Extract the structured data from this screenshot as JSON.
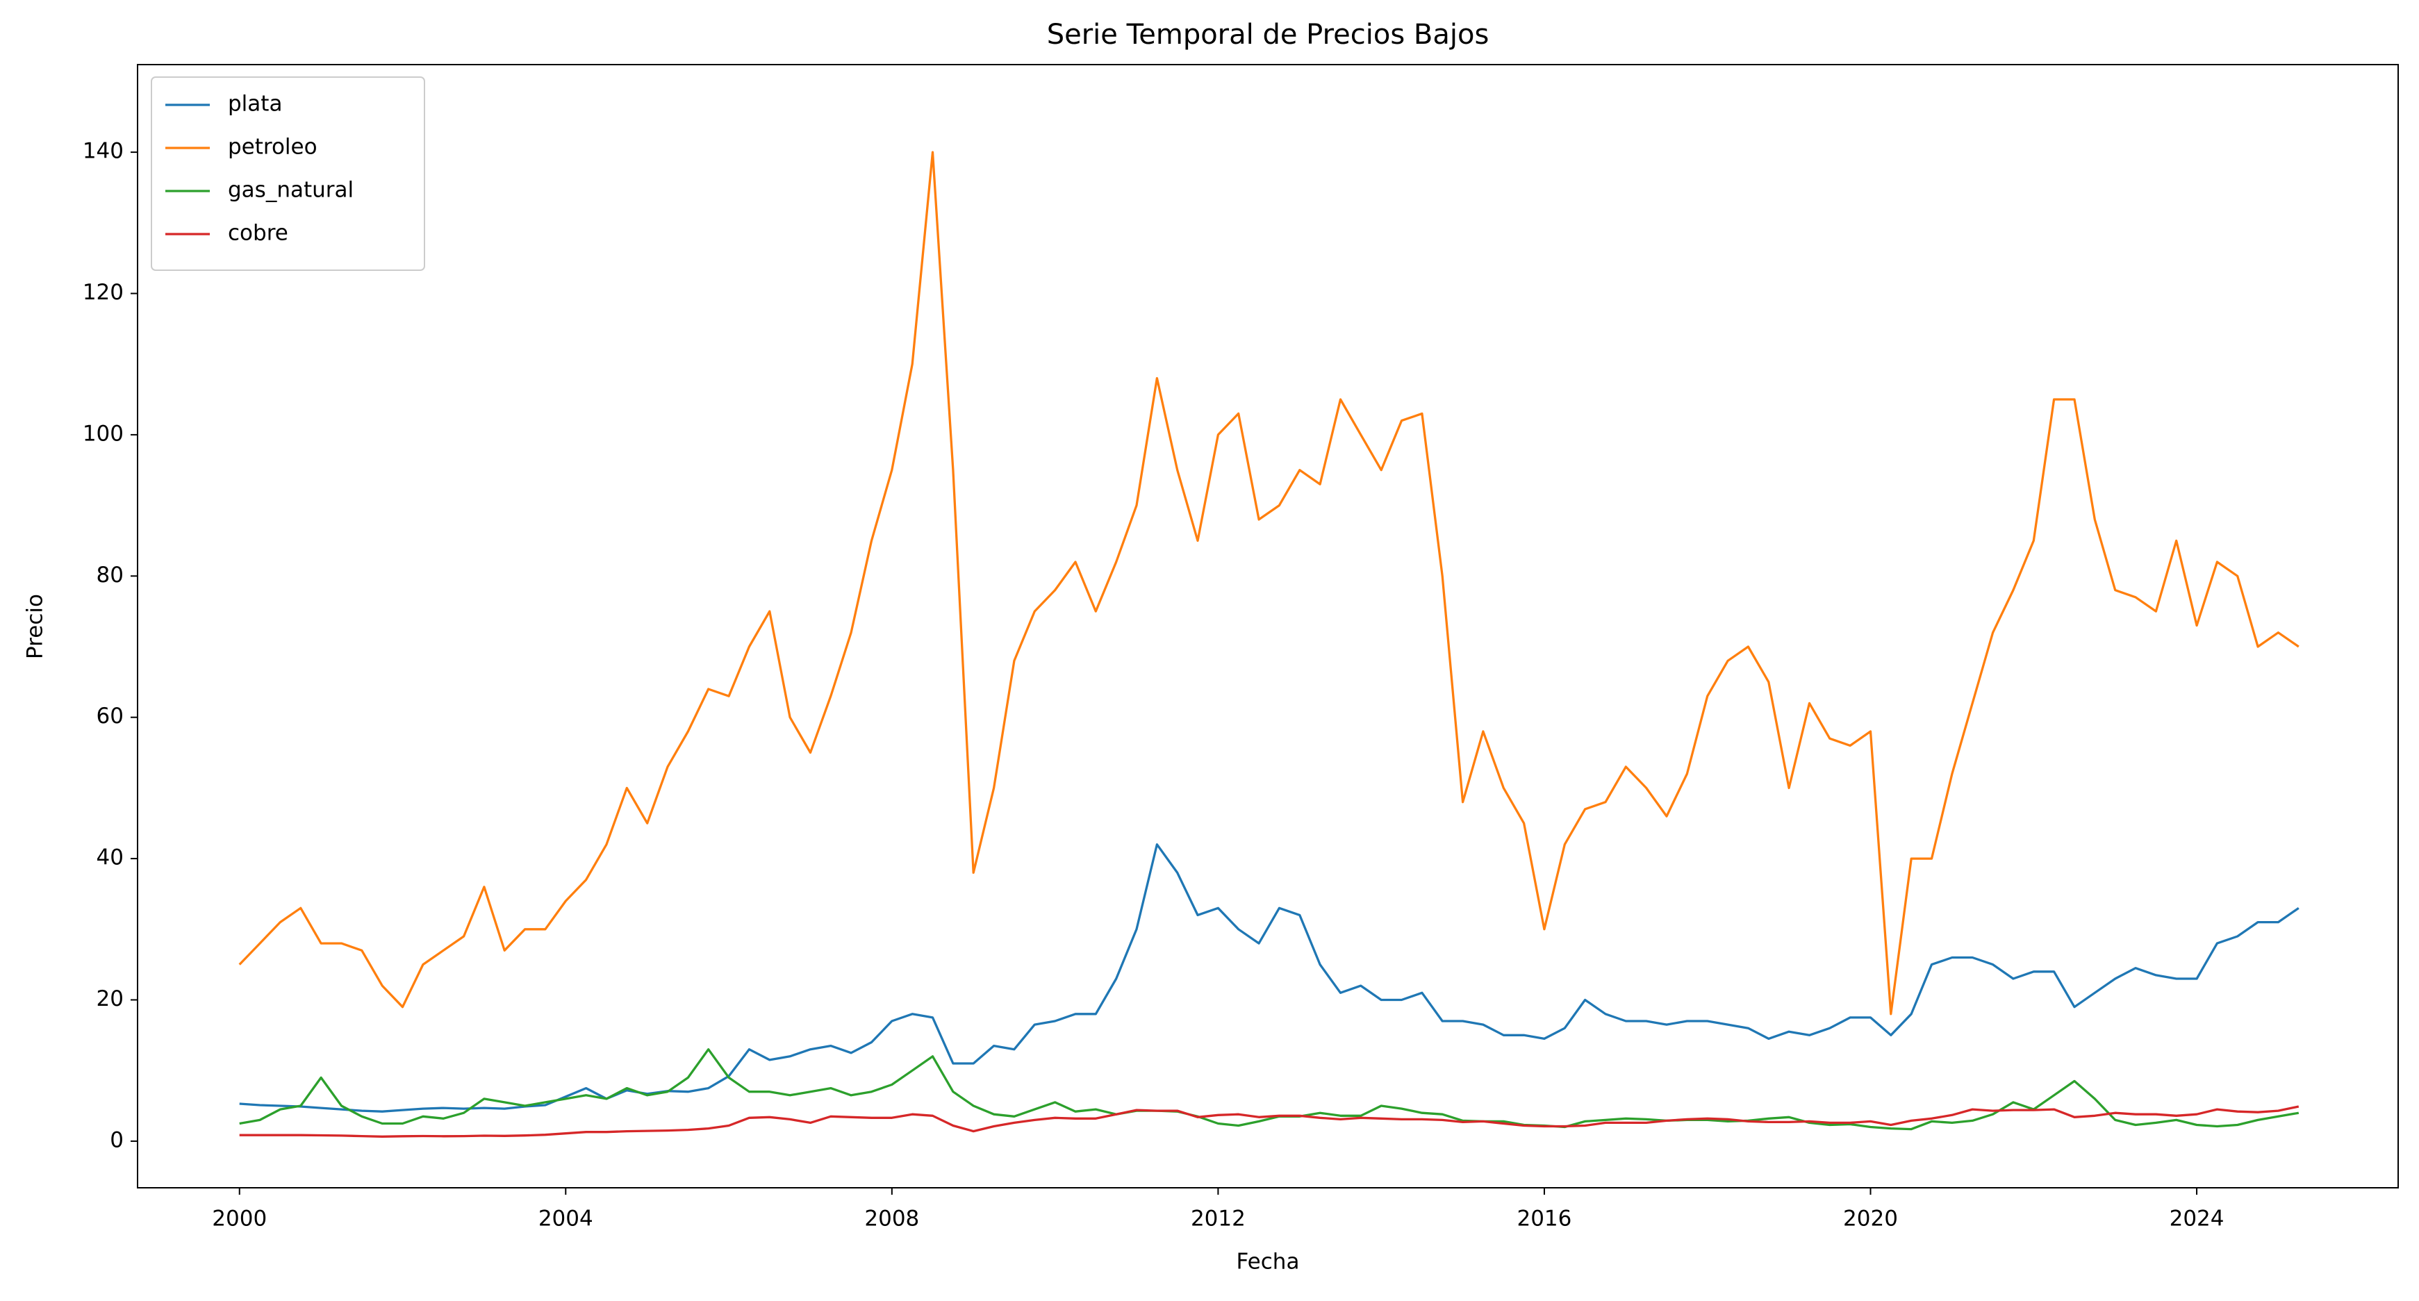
{
  "chart_data": {
    "type": "line",
    "title": "Serie Temporal de Precios Bajos",
    "x_label": "Fecha",
    "y_label": "Precio",
    "legend": "upper left",
    "xlim": [
      1998.75,
      2026.47
    ],
    "ylim": [
      -6.6,
      152.4
    ],
    "xticks": [
      2000,
      2004,
      2008,
      2012,
      2016,
      2020,
      2024
    ],
    "yticks": [
      0,
      20,
      40,
      60,
      80,
      100,
      120,
      140
    ],
    "x": [
      2000,
      2000.25,
      2000.5,
      2000.75,
      2001,
      2001.25,
      2001.5,
      2001.75,
      2002,
      2002.25,
      2002.5,
      2002.75,
      2003,
      2003.25,
      2003.5,
      2003.75,
      2004,
      2004.25,
      2004.5,
      2004.75,
      2005,
      2005.25,
      2005.5,
      2005.75,
      2006,
      2006.25,
      2006.5,
      2006.75,
      2007,
      2007.25,
      2007.5,
      2007.75,
      2008,
      2008.25,
      2008.5,
      2008.75,
      2009,
      2009.25,
      2009.5,
      2009.75,
      2010,
      2010.25,
      2010.5,
      2010.75,
      2011,
      2011.25,
      2011.5,
      2011.75,
      2012,
      2012.25,
      2012.5,
      2012.75,
      2013,
      2013.25,
      2013.5,
      2013.75,
      2014,
      2014.25,
      2014.5,
      2014.75,
      2015,
      2015.25,
      2015.5,
      2015.75,
      2016,
      2016.25,
      2016.5,
      2016.75,
      2017,
      2017.25,
      2017.5,
      2017.75,
      2018,
      2018.25,
      2018.5,
      2018.75,
      2019,
      2019.25,
      2019.5,
      2019.75,
      2020,
      2020.25,
      2020.5,
      2020.75,
      2021,
      2021.25,
      2021.5,
      2021.75,
      2022,
      2022.25,
      2022.5,
      2022.75,
      2023,
      2023.25,
      2023.5,
      2023.75,
      2024,
      2024.25,
      2024.5,
      2024.75,
      2025,
      2025.25
    ],
    "series": [
      {
        "name": "plata",
        "color": "#1f77b4",
        "values": [
          5.3,
          5.1,
          5.0,
          4.9,
          4.7,
          4.5,
          4.3,
          4.2,
          4.4,
          4.6,
          4.7,
          4.6,
          4.7,
          4.6,
          4.9,
          5.1,
          6.3,
          7.5,
          6.0,
          7.2,
          6.7,
          7.1,
          7.0,
          7.5,
          9.2,
          13,
          11.5,
          12,
          13,
          13.5,
          12.5,
          14,
          17,
          18,
          17.5,
          11,
          11,
          13.5,
          13,
          16.5,
          17,
          18,
          18,
          23,
          30,
          42,
          38,
          32,
          33,
          30,
          28,
          33,
          32,
          25,
          21,
          22,
          20,
          20,
          21,
          17,
          17,
          16.5,
          15,
          15,
          14.5,
          16,
          20,
          18,
          17,
          17,
          16.5,
          17,
          17,
          16.5,
          16,
          14.5,
          15.5,
          15,
          16,
          17.5,
          17.5,
          15,
          18,
          25,
          26,
          26,
          25,
          23,
          24,
          24,
          19,
          21,
          23,
          24.5,
          23.5,
          23,
          23,
          28,
          29,
          31,
          31,
          33
        ]
      },
      {
        "name": "petroleo",
        "color": "#ff7f0e",
        "values": [
          25,
          28,
          31,
          33,
          28,
          28,
          27,
          22,
          19,
          25,
          27,
          29,
          36,
          27,
          30,
          30,
          34,
          37,
          42,
          50,
          45,
          53,
          58,
          64,
          63,
          70,
          75,
          60,
          55,
          63,
          72,
          85,
          95,
          110,
          140,
          95,
          38,
          50,
          68,
          75,
          78,
          82,
          75,
          82,
          90,
          108,
          95,
          85,
          100,
          103,
          88,
          90,
          95,
          93,
          105,
          100,
          95,
          102,
          103,
          80,
          48,
          58,
          50,
          45,
          30,
          42,
          47,
          48,
          53,
          50,
          46,
          52,
          63,
          68,
          70,
          65,
          50,
          62,
          57,
          56,
          58,
          18,
          40,
          40,
          52,
          62,
          72,
          78,
          85,
          105,
          105,
          88,
          78,
          77,
          75,
          85,
          73,
          82,
          80,
          70,
          72,
          70
        ]
      },
      {
        "name": "gas_natural",
        "color": "#2ca02c",
        "values": [
          2.5,
          3,
          4.5,
          5,
          9,
          5,
          3.5,
          2.5,
          2.5,
          3.5,
          3.2,
          4,
          6,
          5.5,
          5,
          5.5,
          6,
          6.5,
          6,
          7.5,
          6.5,
          7,
          9,
          13,
          9,
          7,
          7,
          6.5,
          7,
          7.5,
          6.5,
          7,
          8,
          10,
          12,
          7,
          5,
          3.8,
          3.5,
          4.5,
          5.5,
          4.2,
          4.5,
          3.8,
          4.3,
          4.3,
          4.2,
          3.5,
          2.5,
          2.2,
          2.8,
          3.5,
          3.5,
          4,
          3.6,
          3.6,
          5,
          4.6,
          4,
          3.8,
          2.9,
          2.8,
          2.8,
          2.3,
          2.2,
          2,
          2.8,
          3,
          3.2,
          3.1,
          2.9,
          3,
          3,
          2.8,
          2.9,
          3.2,
          3.4,
          2.6,
          2.3,
          2.4,
          2,
          1.8,
          1.7,
          2.8,
          2.6,
          2.9,
          3.8,
          5.5,
          4.5,
          6.5,
          8.5,
          6,
          3,
          2.3,
          2.6,
          3,
          2.3,
          2.1,
          2.3,
          3,
          3.5,
          4
        ]
      },
      {
        "name": "cobre",
        "color": "#d62728",
        "values": [
          0.85,
          0.85,
          0.85,
          0.85,
          0.82,
          0.78,
          0.72,
          0.65,
          0.7,
          0.73,
          0.7,
          0.72,
          0.77,
          0.75,
          0.8,
          0.9,
          1.1,
          1.3,
          1.3,
          1.4,
          1.45,
          1.5,
          1.6,
          1.8,
          2.2,
          3.3,
          3.4,
          3.1,
          2.6,
          3.5,
          3.4,
          3.3,
          3.3,
          3.8,
          3.6,
          2.2,
          1.4,
          2.1,
          2.6,
          3,
          3.3,
          3.2,
          3.2,
          3.8,
          4.4,
          4.3,
          4.3,
          3.4,
          3.7,
          3.8,
          3.4,
          3.6,
          3.6,
          3.3,
          3.1,
          3.3,
          3.2,
          3.1,
          3.1,
          3,
          2.7,
          2.8,
          2.5,
          2.2,
          2.1,
          2.1,
          2.2,
          2.6,
          2.6,
          2.6,
          2.9,
          3.1,
          3.2,
          3.1,
          2.8,
          2.7,
          2.7,
          2.8,
          2.6,
          2.6,
          2.8,
          2.3,
          2.9,
          3.2,
          3.7,
          4.5,
          4.3,
          4.4,
          4.4,
          4.5,
          3.4,
          3.6,
          4,
          3.8,
          3.8,
          3.6,
          3.8,
          4.5,
          4.2,
          4.1,
          4.3,
          4.9
        ]
      }
    ]
  }
}
